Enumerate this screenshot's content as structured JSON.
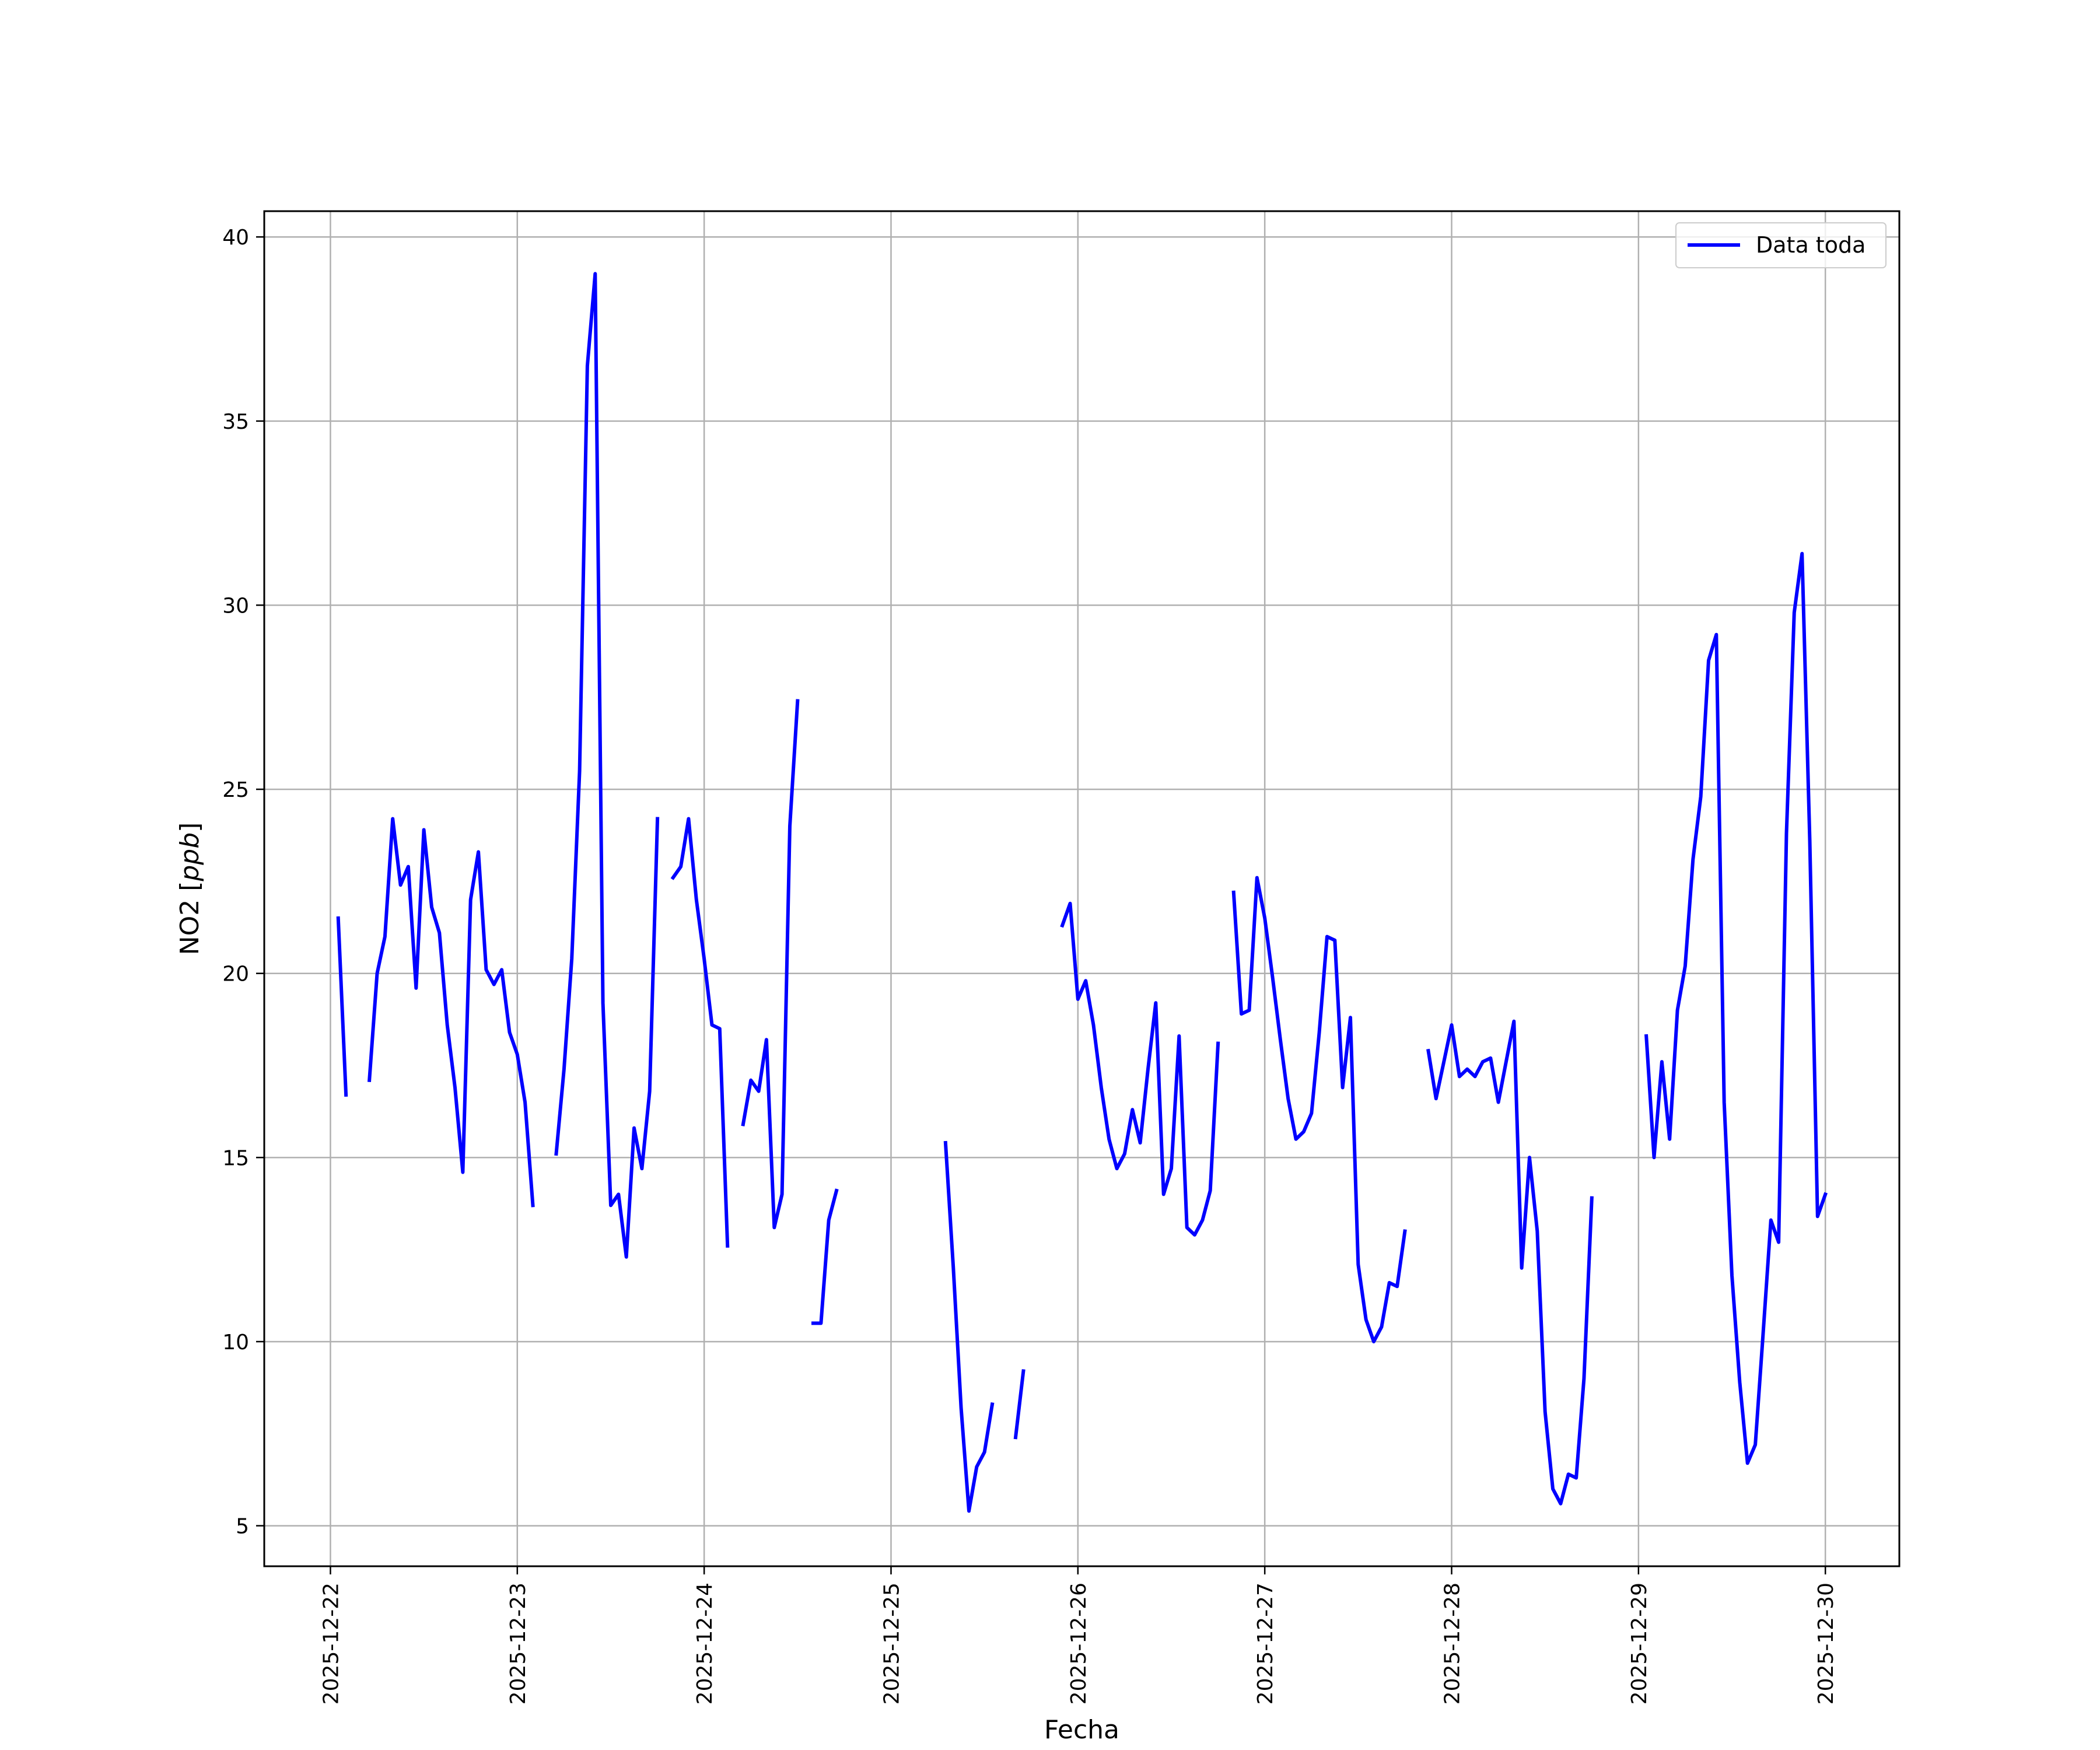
{
  "chart_data": {
    "type": "line",
    "xlabel": "Fecha",
    "ylabel_text": "NO2 [",
    "ylabel_unit": "ppb",
    "ylabel_close": "]",
    "x_tick_labels": [
      "2025-12-22",
      "2025-12-23",
      "2025-12-24",
      "2025-12-25",
      "2025-12-26",
      "2025-12-27",
      "2025-12-28",
      "2025-12-29",
      "2025-12-30"
    ],
    "y_ticks": [
      5,
      10,
      15,
      20,
      25,
      30,
      35,
      40
    ],
    "xlim": [
      "2025-12-21 15:30",
      "2025-12-30 09:30"
    ],
    "ylim": [
      3.9,
      40.7
    ],
    "grid": true,
    "legend_position": "top-right",
    "line_color": "#0000ff",
    "series": [
      {
        "name": "Data toda",
        "segments": [
          [
            [
              "2025-12-22 01:00",
              21.5
            ],
            [
              "2025-12-22 02:00",
              16.7
            ]
          ],
          [
            [
              "2025-12-22 05:00",
              17.1
            ],
            [
              "2025-12-22 06:00",
              20.0
            ],
            [
              "2025-12-22 07:00",
              21.0
            ],
            [
              "2025-12-22 08:00",
              24.2
            ],
            [
              "2025-12-22 09:00",
              22.4
            ],
            [
              "2025-12-22 10:00",
              22.9
            ],
            [
              "2025-12-22 11:00",
              19.6
            ],
            [
              "2025-12-22 12:00",
              23.9
            ],
            [
              "2025-12-22 13:00",
              21.8
            ],
            [
              "2025-12-22 14:00",
              21.1
            ],
            [
              "2025-12-22 15:00",
              18.6
            ],
            [
              "2025-12-22 16:00",
              16.9
            ],
            [
              "2025-12-22 17:00",
              14.6
            ],
            [
              "2025-12-22 18:00",
              22.0
            ],
            [
              "2025-12-22 19:00",
              23.3
            ],
            [
              "2025-12-22 20:00",
              20.1
            ],
            [
              "2025-12-22 21:00",
              19.7
            ],
            [
              "2025-12-22 22:00",
              20.1
            ],
            [
              "2025-12-22 23:00",
              18.4
            ],
            [
              "2025-12-23 00:00",
              17.8
            ],
            [
              "2025-12-23 01:00",
              16.5
            ],
            [
              "2025-12-23 02:00",
              13.7
            ]
          ],
          [
            [
              "2025-12-23 05:00",
              15.1
            ],
            [
              "2025-12-23 06:00",
              17.4
            ],
            [
              "2025-12-23 07:00",
              20.4
            ],
            [
              "2025-12-23 08:00",
              25.5
            ],
            [
              "2025-12-23 09:00",
              36.5
            ],
            [
              "2025-12-23 10:00",
              39.0
            ],
            [
              "2025-12-23 11:00",
              19.2
            ],
            [
              "2025-12-23 12:00",
              13.7
            ],
            [
              "2025-12-23 13:00",
              14.0
            ],
            [
              "2025-12-23 14:00",
              12.3
            ],
            [
              "2025-12-23 15:00",
              15.8
            ],
            [
              "2025-12-23 16:00",
              14.7
            ],
            [
              "2025-12-23 17:00",
              16.8
            ],
            [
              "2025-12-23 18:00",
              24.2
            ]
          ],
          [
            [
              "2025-12-23 20:00",
              22.6
            ],
            [
              "2025-12-23 21:00",
              22.9
            ],
            [
              "2025-12-23 22:00",
              24.2
            ],
            [
              "2025-12-23 23:00",
              22.0
            ],
            [
              "2025-12-24 00:00",
              20.4
            ],
            [
              "2025-12-24 01:00",
              18.6
            ],
            [
              "2025-12-24 02:00",
              18.5
            ],
            [
              "2025-12-24 03:00",
              12.6
            ]
          ],
          [
            [
              "2025-12-24 05:00",
              15.9
            ],
            [
              "2025-12-24 06:00",
              17.1
            ],
            [
              "2025-12-24 07:00",
              16.8
            ],
            [
              "2025-12-24 08:00",
              18.2
            ],
            [
              "2025-12-24 09:00",
              13.1
            ],
            [
              "2025-12-24 10:00",
              14.0
            ],
            [
              "2025-12-24 11:00",
              24.0
            ],
            [
              "2025-12-24 12:00",
              27.4
            ]
          ],
          [
            [
              "2025-12-24 14:00",
              10.5
            ],
            [
              "2025-12-24 15:00",
              10.5
            ],
            [
              "2025-12-24 16:00",
              13.3
            ],
            [
              "2025-12-24 17:00",
              14.1
            ]
          ],
          [
            [
              "2025-12-25 07:00",
              15.4
            ],
            [
              "2025-12-25 08:00",
              12.0
            ],
            [
              "2025-12-25 09:00",
              8.2
            ],
            [
              "2025-12-25 10:00",
              5.4
            ],
            [
              "2025-12-25 11:00",
              6.6
            ],
            [
              "2025-12-25 12:00",
              7.0
            ],
            [
              "2025-12-25 13:00",
              8.3
            ]
          ],
          [
            [
              "2025-12-25 16:00",
              7.4
            ],
            [
              "2025-12-25 17:00",
              9.2
            ]
          ],
          [
            [
              "2025-12-25 22:00",
              21.3
            ],
            [
              "2025-12-25 23:00",
              21.9
            ],
            [
              "2025-12-26 00:00",
              19.3
            ],
            [
              "2025-12-26 01:00",
              19.8
            ],
            [
              "2025-12-26 02:00",
              18.6
            ],
            [
              "2025-12-26 03:00",
              16.9
            ],
            [
              "2025-12-26 04:00",
              15.5
            ],
            [
              "2025-12-26 05:00",
              14.7
            ],
            [
              "2025-12-26 06:00",
              15.1
            ],
            [
              "2025-12-26 07:00",
              16.3
            ],
            [
              "2025-12-26 08:00",
              15.4
            ],
            [
              "2025-12-26 09:00",
              17.4
            ],
            [
              "2025-12-26 10:00",
              19.2
            ],
            [
              "2025-12-26 11:00",
              14.0
            ],
            [
              "2025-12-26 12:00",
              14.7
            ],
            [
              "2025-12-26 13:00",
              18.3
            ],
            [
              "2025-12-26 14:00",
              13.1
            ],
            [
              "2025-12-26 15:00",
              12.9
            ],
            [
              "2025-12-26 16:00",
              13.3
            ],
            [
              "2025-12-26 17:00",
              14.1
            ],
            [
              "2025-12-26 18:00",
              18.1
            ]
          ],
          [
            [
              "2025-12-26 20:00",
              22.2
            ],
            [
              "2025-12-26 21:00",
              18.9
            ],
            [
              "2025-12-26 22:00",
              19.0
            ],
            [
              "2025-12-26 23:00",
              22.6
            ],
            [
              "2025-12-27 00:00",
              21.5
            ],
            [
              "2025-12-27 01:00",
              19.9
            ],
            [
              "2025-12-27 02:00",
              18.2
            ],
            [
              "2025-12-27 03:00",
              16.6
            ],
            [
              "2025-12-27 04:00",
              15.5
            ],
            [
              "2025-12-27 05:00",
              15.7
            ],
            [
              "2025-12-27 06:00",
              16.2
            ],
            [
              "2025-12-27 07:00",
              18.4
            ],
            [
              "2025-12-27 08:00",
              21.0
            ],
            [
              "2025-12-27 09:00",
              20.9
            ],
            [
              "2025-12-27 10:00",
              16.9
            ],
            [
              "2025-12-27 11:00",
              18.8
            ],
            [
              "2025-12-27 12:00",
              12.1
            ],
            [
              "2025-12-27 13:00",
              10.6
            ],
            [
              "2025-12-27 14:00",
              10.0
            ],
            [
              "2025-12-27 15:00",
              10.4
            ],
            [
              "2025-12-27 16:00",
              11.6
            ],
            [
              "2025-12-27 17:00",
              11.5
            ],
            [
              "2025-12-27 18:00",
              13.0
            ]
          ],
          [
            [
              "2025-12-27 21:00",
              17.9
            ],
            [
              "2025-12-27 22:00",
              16.6
            ],
            [
              "2025-12-27 23:00",
              17.6
            ],
            [
              "2025-12-28 00:00",
              18.6
            ],
            [
              "2025-12-28 01:00",
              17.2
            ],
            [
              "2025-12-28 02:00",
              17.4
            ],
            [
              "2025-12-28 03:00",
              17.2
            ],
            [
              "2025-12-28 04:00",
              17.6
            ],
            [
              "2025-12-28 05:00",
              17.7
            ],
            [
              "2025-12-28 06:00",
              16.5
            ],
            [
              "2025-12-28 07:00",
              17.6
            ],
            [
              "2025-12-28 08:00",
              18.7
            ],
            [
              "2025-12-28 09:00",
              12.0
            ],
            [
              "2025-12-28 10:00",
              15.0
            ],
            [
              "2025-12-28 11:00",
              13.0
            ],
            [
              "2025-12-28 12:00",
              8.1
            ],
            [
              "2025-12-28 13:00",
              6.0
            ],
            [
              "2025-12-28 14:00",
              5.6
            ],
            [
              "2025-12-28 15:00",
              6.4
            ],
            [
              "2025-12-28 16:00",
              6.3
            ],
            [
              "2025-12-28 17:00",
              9.0
            ],
            [
              "2025-12-28 18:00",
              13.9
            ]
          ],
          [
            [
              "2025-12-29 01:00",
              18.3
            ],
            [
              "2025-12-29 02:00",
              15.0
            ],
            [
              "2025-12-29 03:00",
              17.6
            ],
            [
              "2025-12-29 04:00",
              15.5
            ],
            [
              "2025-12-29 05:00",
              19.0
            ],
            [
              "2025-12-29 06:00",
              20.2
            ],
            [
              "2025-12-29 07:00",
              23.1
            ],
            [
              "2025-12-29 08:00",
              24.8
            ],
            [
              "2025-12-29 09:00",
              28.5
            ],
            [
              "2025-12-29 10:00",
              29.2
            ],
            [
              "2025-12-29 11:00",
              16.5
            ],
            [
              "2025-12-29 12:00",
              11.8
            ],
            [
              "2025-12-29 13:00",
              8.9
            ],
            [
              "2025-12-29 14:00",
              6.7
            ],
            [
              "2025-12-29 15:00",
              7.2
            ],
            [
              "2025-12-29 16:00",
              10.2
            ],
            [
              "2025-12-29 17:00",
              13.3
            ],
            [
              "2025-12-29 18:00",
              12.7
            ],
            [
              "2025-12-29 19:00",
              23.8
            ],
            [
              "2025-12-29 20:00",
              29.8
            ],
            [
              "2025-12-29 21:00",
              31.4
            ],
            [
              "2025-12-29 22:00",
              23.6
            ],
            [
              "2025-12-29 23:00",
              13.4
            ],
            [
              "2025-12-30 00:00",
              14.0
            ]
          ]
        ]
      }
    ]
  }
}
